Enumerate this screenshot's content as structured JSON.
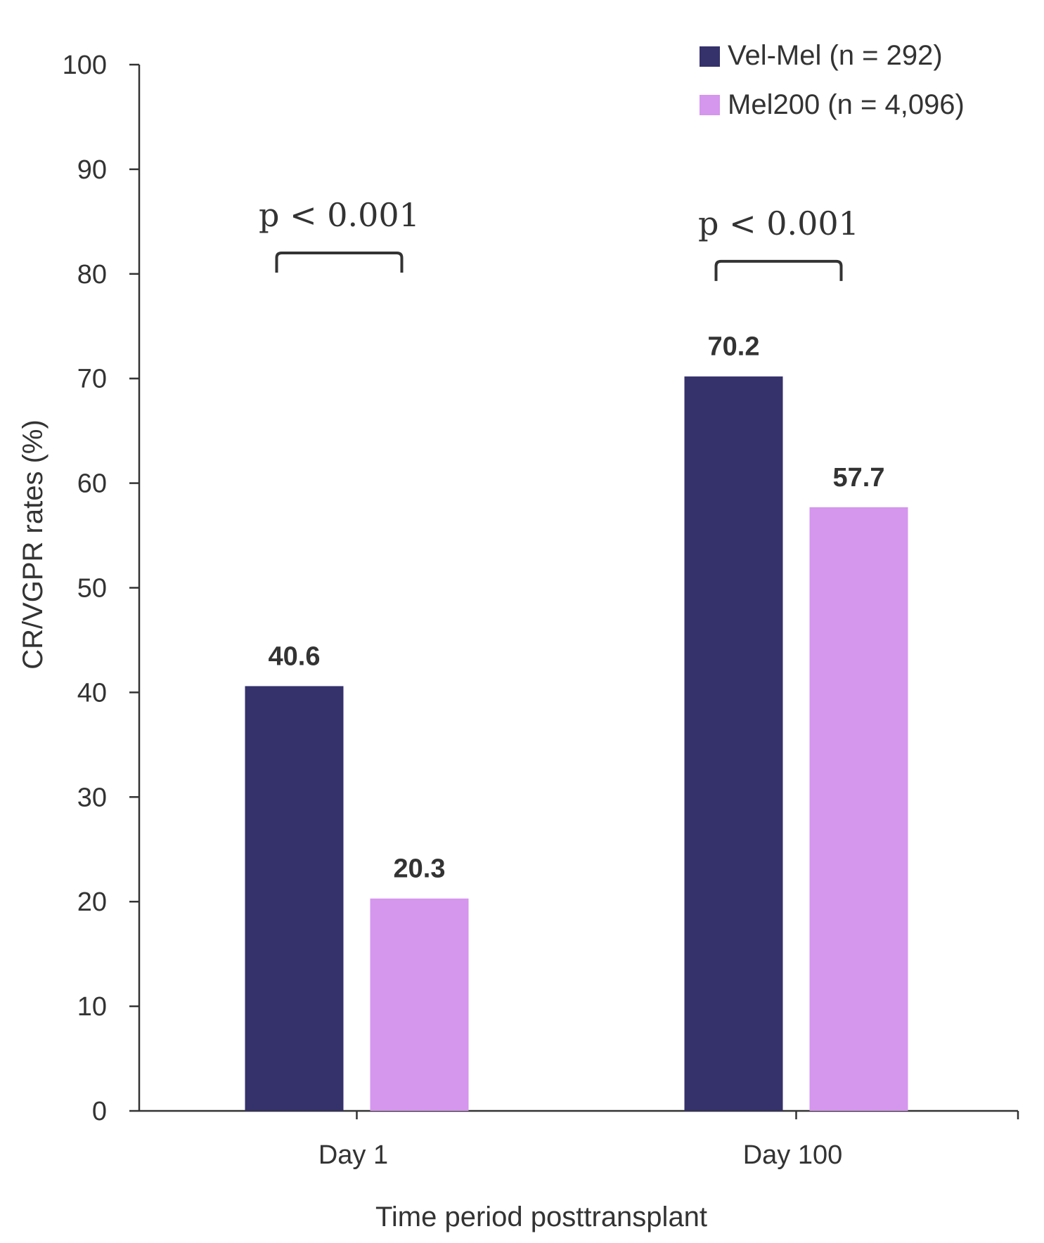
{
  "chart_data": {
    "type": "bar",
    "categories": [
      "Day 1",
      "Day 100"
    ],
    "series": [
      {
        "name": "Vel-Mel (n = 292)",
        "values": [
          40.6,
          70.2
        ],
        "color": "#34316b"
      },
      {
        "name": "Mel200 (n = 4,096)",
        "values": [
          20.3,
          57.7
        ],
        "color": "#d596ee"
      }
    ],
    "data_labels": [
      [
        "40.6",
        "70.2"
      ],
      [
        "20.3",
        "57.7"
      ]
    ],
    "title": "",
    "xlabel": "Time period posttransplant",
    "ylabel": "CR/VGPR rates (%)",
    "ylim": [
      0,
      100
    ],
    "yticks": [
      0,
      10,
      20,
      30,
      40,
      50,
      60,
      70,
      80,
      90,
      100
    ],
    "grid": false,
    "legend_position": "top-right",
    "annotations": [
      {
        "category": "Day 1",
        "text": "p < 0.001",
        "bracket_level": 82
      },
      {
        "category": "Day 100",
        "text": "p < 0.001",
        "bracket_level": 81.2
      }
    ],
    "axis_color": "#333333"
  }
}
